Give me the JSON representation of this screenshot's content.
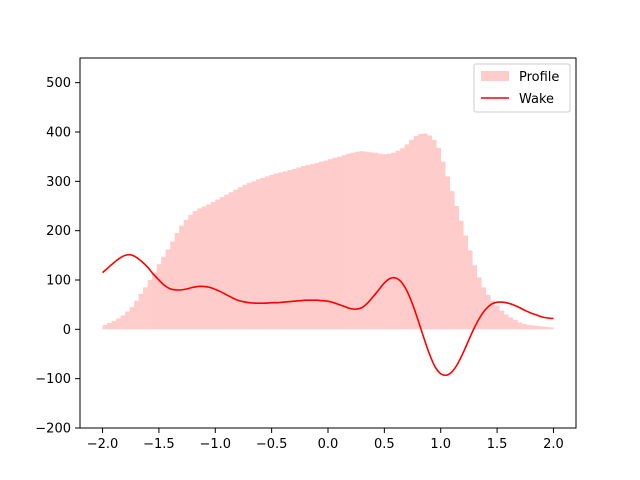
{
  "chart_data": {
    "type": "bar+line",
    "xlim": [
      -2.2,
      2.2
    ],
    "ylim": [
      -200,
      550
    ],
    "xticks": [
      -2.0,
      -1.5,
      -1.0,
      -0.5,
      0.0,
      0.5,
      1.0,
      1.5,
      2.0
    ],
    "xtick_labels": [
      "−2.0",
      "−1.5",
      "−1.0",
      "−0.5",
      "0.0",
      "0.5",
      "1.0",
      "1.5",
      "2.0"
    ],
    "yticks": [
      -200,
      -100,
      0,
      100,
      200,
      300,
      400,
      500
    ],
    "ytick_labels": [
      "−200",
      "−100",
      "0",
      "100",
      "200",
      "300",
      "400",
      "500"
    ],
    "grid": false,
    "legend": {
      "position": "top-right",
      "entries": [
        "Profile",
        "Wake"
      ]
    },
    "series": [
      {
        "name": "Profile",
        "kind": "histogram",
        "color": "#ffcccc",
        "bin_width": 0.04,
        "x": [
          -1.98,
          -1.94,
          -1.9,
          -1.86,
          -1.82,
          -1.78,
          -1.74,
          -1.7,
          -1.66,
          -1.62,
          -1.58,
          -1.54,
          -1.5,
          -1.46,
          -1.42,
          -1.38,
          -1.34,
          -1.3,
          -1.26,
          -1.22,
          -1.18,
          -1.14,
          -1.1,
          -1.06,
          -1.02,
          -0.98,
          -0.94,
          -0.9,
          -0.86,
          -0.82,
          -0.78,
          -0.74,
          -0.7,
          -0.66,
          -0.62,
          -0.58,
          -0.54,
          -0.5,
          -0.46,
          -0.42,
          -0.38,
          -0.34,
          -0.3,
          -0.26,
          -0.22,
          -0.18,
          -0.14,
          -0.1,
          -0.06,
          -0.02,
          0.02,
          0.06,
          0.1,
          0.14,
          0.18,
          0.22,
          0.26,
          0.3,
          0.34,
          0.38,
          0.42,
          0.46,
          0.5,
          0.54,
          0.58,
          0.62,
          0.66,
          0.7,
          0.74,
          0.78,
          0.82,
          0.86,
          0.9,
          0.94,
          0.98,
          1.02,
          1.06,
          1.1,
          1.14,
          1.18,
          1.22,
          1.26,
          1.3,
          1.34,
          1.38,
          1.42,
          1.46,
          1.5,
          1.54,
          1.58,
          1.62,
          1.66,
          1.7,
          1.74,
          1.78,
          1.82,
          1.86,
          1.9,
          1.94,
          1.98
        ],
        "values": [
          9,
          13,
          17,
          22,
          28,
          36,
          45,
          58,
          72,
          85,
          100,
          115,
          132,
          147,
          162,
          178,
          195,
          210,
          222,
          232,
          240,
          245,
          249,
          253,
          258,
          263,
          268,
          273,
          278,
          283,
          288,
          293,
          297,
          300,
          304,
          307,
          310,
          313,
          316,
          318,
          320,
          323,
          325,
          328,
          331,
          333,
          335,
          337,
          340,
          342,
          345,
          348,
          350,
          353,
          356,
          358,
          360,
          361,
          360,
          359,
          358,
          356,
          355,
          356,
          358,
          362,
          367,
          375,
          384,
          392,
          396,
          397,
          393,
          384,
          368,
          340,
          310,
          280,
          250,
          220,
          190,
          160,
          130,
          105,
          85,
          70,
          58,
          48,
          38,
          30,
          24,
          19,
          14,
          11,
          9,
          8,
          7,
          6,
          5,
          4
        ]
      },
      {
        "name": "Wake",
        "kind": "line",
        "color": "#ff0000",
        "x": [
          -2.0,
          -1.95,
          -1.9,
          -1.85,
          -1.8,
          -1.75,
          -1.7,
          -1.65,
          -1.6,
          -1.55,
          -1.5,
          -1.45,
          -1.4,
          -1.35,
          -1.3,
          -1.25,
          -1.2,
          -1.15,
          -1.1,
          -1.05,
          -1.0,
          -0.95,
          -0.9,
          -0.85,
          -0.8,
          -0.75,
          -0.7,
          -0.65,
          -0.6,
          -0.55,
          -0.5,
          -0.45,
          -0.4,
          -0.35,
          -0.3,
          -0.25,
          -0.2,
          -0.15,
          -0.1,
          -0.05,
          0.0,
          0.05,
          0.1,
          0.15,
          0.2,
          0.25,
          0.3,
          0.35,
          0.4,
          0.45,
          0.5,
          0.55,
          0.6,
          0.65,
          0.7,
          0.75,
          0.8,
          0.85,
          0.9,
          0.95,
          1.0,
          1.05,
          1.1,
          1.15,
          1.2,
          1.25,
          1.3,
          1.35,
          1.4,
          1.45,
          1.5,
          1.55,
          1.6,
          1.65,
          1.7,
          1.75,
          1.8,
          1.85,
          1.9,
          1.95,
          2.0
        ],
        "values": [
          115,
          125,
          135,
          144,
          150,
          151,
          146,
          137,
          126,
          112,
          100,
          89,
          82,
          80,
          80,
          82,
          85,
          87,
          87,
          85,
          81,
          76,
          70,
          64,
          59,
          56,
          54,
          53,
          53,
          53,
          54,
          54,
          55,
          56,
          57,
          58,
          59,
          59,
          59,
          58,
          57,
          54,
          50,
          46,
          42,
          41,
          44,
          53,
          66,
          80,
          94,
          103,
          104,
          96,
          78,
          51,
          18,
          -17,
          -50,
          -76,
          -90,
          -93,
          -86,
          -70,
          -47,
          -21,
          4,
          25,
          41,
          51,
          55,
          55,
          53,
          49,
          44,
          38,
          33,
          29,
          25,
          23,
          22
        ]
      }
    ]
  }
}
